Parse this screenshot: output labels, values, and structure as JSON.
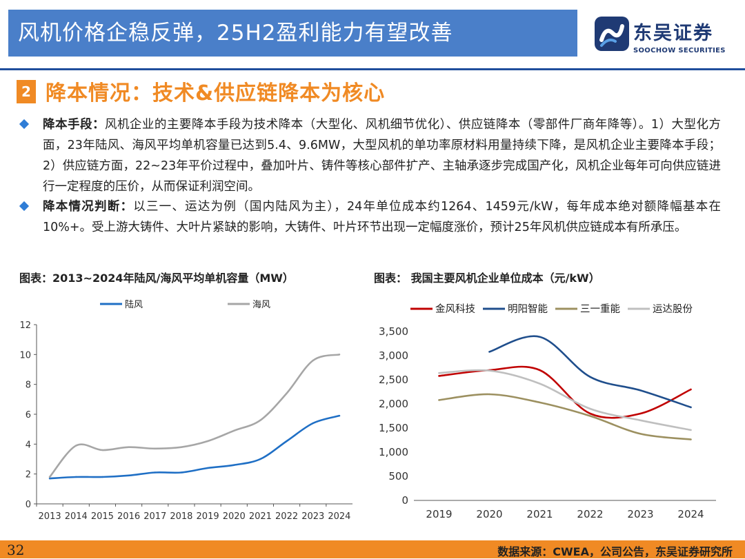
{
  "header": {
    "title": "风机价格企稳反弹，25H2盈利能力有望改善",
    "logo_cn": "东吴证券",
    "logo_en": "SOOCHOW SECURITIES"
  },
  "section": {
    "number": "2",
    "title": "降本情况：技术&供应链降本为核心"
  },
  "bullets": [
    {
      "head": "降本手段：",
      "text": "风机企业的主要降本手段为技术降本（大型化、风机细节优化）、供应链降本（零部件厂商年降等）。1）大型化方面，23年陆风、海风平均单机容量已达到5.4、9.6MW，大型风机的单功率原材料用量持续下降，是风机企业主要降本手段；2）供应链方面，22~23年平价过程中，叠加叶片、铸件等核心部件扩产、主轴承逐步完成国产化，风机企业每年可向供应链进行一定程度的压价，从而保证利润空间。"
    },
    {
      "head": "降本情况判断：",
      "text": "以三一、运达为例（国内陆风为主），24年单位成本约1264、1459元/kW，每年成本绝对额降幅基本在10%+。受上游大铸件、大叶片紧缺的影响，大铸件、叶片环节出现一定幅度涨价，预计25年风机供应链成本有所承压。"
    }
  ],
  "footer": {
    "page_number": "32",
    "source": "数据来源：CWEA，公司公告，东吴证券研究所"
  },
  "colors": {
    "accent": "#f08a24",
    "title_bg": "#4a7fc9",
    "brand": "#1f3a74"
  },
  "chart_data": [
    {
      "caption": "图表：2013~2024年陆风/海风平均单机容量（MW）",
      "type": "line",
      "x": [
        "2013",
        "2014",
        "2015",
        "2016",
        "2017",
        "2018",
        "2019",
        "2020",
        "2021",
        "2022",
        "2023",
        "2024"
      ],
      "series": [
        {
          "name": "陆风",
          "color": "#1f6fc5",
          "values": [
            1.7,
            1.8,
            1.8,
            1.9,
            2.1,
            2.1,
            2.4,
            2.6,
            3.0,
            4.2,
            5.4,
            5.9
          ]
        },
        {
          "name": "海风",
          "color": "#a6a6a6",
          "values": [
            1.8,
            3.9,
            3.6,
            3.8,
            3.7,
            3.8,
            4.2,
            4.9,
            5.6,
            7.4,
            9.6,
            10.0
          ]
        }
      ],
      "ylim": [
        0,
        12
      ],
      "yticks": [
        "0",
        "2",
        "4",
        "6",
        "8",
        "10",
        "12"
      ],
      "legend": "top-center",
      "grid": false
    },
    {
      "caption": "图表：   我国主要风机企业单位成本（元/kW）",
      "type": "line",
      "x": [
        "2019",
        "2020",
        "2021",
        "2022",
        "2023",
        "2024"
      ],
      "series": [
        {
          "name": "金风科技",
          "color": "#c00000",
          "values": [
            2580,
            2700,
            2700,
            1800,
            1800,
            2300
          ]
        },
        {
          "name": "明阳智能",
          "color": "#1f4e8c",
          "values": [
            null,
            3080,
            3390,
            2560,
            2280,
            1930
          ]
        },
        {
          "name": "三一重能",
          "color": "#9c9060",
          "values": [
            2080,
            2200,
            2030,
            1750,
            1380,
            1264
          ]
        },
        {
          "name": "运达股份",
          "color": "#bfbfbf",
          "values": [
            2640,
            2690,
            2420,
            1900,
            1660,
            1459
          ]
        }
      ],
      "ylim": [
        0,
        3500
      ],
      "yticks": [
        "0",
        "500",
        "1,000",
        "1,500",
        "2,000",
        "2,500",
        "3,000",
        "3,500"
      ],
      "legend": "top",
      "grid": false
    }
  ]
}
